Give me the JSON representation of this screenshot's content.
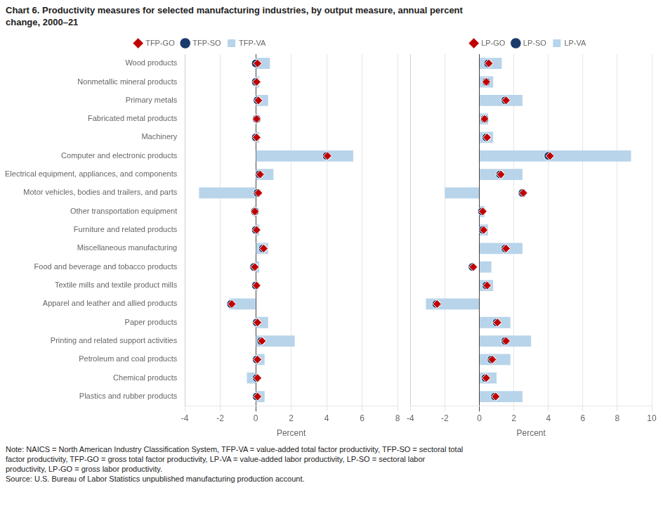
{
  "title": "Chart 6. Productivity measures for selected manufacturing industries, by output measure, annual percent\nchange, 2000–21",
  "note": "Note: NAICS = North American Industry Classification System, TFP-VA = value-added total factor productivity, TFP-SO = sectoral total\nfactor productivity, TFP-GO = gross total factor productivity, LP-VA = value-added labor productivity, LP-SO = sectoral labor\nproductivity, LP-GO = gross labor productivity.\nSource: U.S. Bureau of Labor Statistics unpublished manufacturing production account.",
  "chart_data": [
    {
      "type": "bar",
      "orientation": "horizontal",
      "x_label": "Percent",
      "grid": true,
      "legend": "top",
      "categories": [
        "Wood products",
        "Nonmetallic mineral products",
        "Primary metals",
        "Fabricated metal products",
        "Machinery",
        "Computer and electronic products",
        "Electrical equipment, appliances, and components",
        "Motor vehicles, bodies and trailers, and parts",
        "Other transportation equipment",
        "Furniture and related products",
        "Miscellaneous manufacturing",
        "Food and beverage and tobacco products",
        "Textile mills and textile product mills",
        "Apparel and leather and allied products",
        "Paper products",
        "Printing and related support activities",
        "Petroleum and coal products",
        "Chemical products",
        "Plastics and rubber products"
      ],
      "xlim": [
        -4,
        8
      ],
      "xticks": [
        -4,
        -2,
        0,
        2,
        4,
        6,
        8
      ],
      "series": [
        {
          "name": "TFP-VA",
          "type": "bar",
          "color": "#b8d4ea",
          "values": [
            0.8,
            0.2,
            0.7,
            0.1,
            0.2,
            5.5,
            1.0,
            -3.2,
            -0.1,
            0.2,
            0.7,
            0.2,
            0.1,
            -1.5,
            0.7,
            2.2,
            0.5,
            -0.5,
            0.5
          ]
        },
        {
          "name": "TFP-SO",
          "type": "scatter",
          "marker": "circle",
          "color": "#1a3a6b",
          "values": [
            0.0,
            0.0,
            0.1,
            0.05,
            0.0,
            4.0,
            0.2,
            0.1,
            -0.05,
            0.0,
            0.4,
            -0.1,
            0.0,
            -1.4,
            0.05,
            0.3,
            0.05,
            0.05,
            0.05
          ]
        },
        {
          "name": "TFP-GO",
          "type": "scatter",
          "marker": "diamond",
          "color": "#c00000",
          "values": [
            0.1,
            0.05,
            0.15,
            0.05,
            0.05,
            4.05,
            0.25,
            0.15,
            -0.05,
            0.05,
            0.45,
            -0.05,
            0.05,
            -1.35,
            0.1,
            0.35,
            0.1,
            0.1,
            0.1
          ]
        }
      ]
    },
    {
      "type": "bar",
      "orientation": "horizontal",
      "x_label": "Percent",
      "grid": true,
      "legend": "top",
      "tick_labels": "x",
      "categories": [
        "Wood products",
        "Nonmetallic mineral products",
        "Primary metals",
        "Fabricated metal products",
        "Machinery",
        "Computer and electronic products",
        "Electrical equipment, appliances, and components",
        "Motor vehicles, bodies and trailers, and parts",
        "Other transportation equipment",
        "Furniture and related products",
        "Miscellaneous manufacturing",
        "Food and beverage and tobacco products",
        "Textile mills and textile product mills",
        "Apparel and leather and allied products",
        "Paper products",
        "Printing and related support activities",
        "Petroleum and coal products",
        "Chemical products",
        "Plastics and rubber products"
      ],
      "xlim": [
        -4,
        10
      ],
      "xticks": [
        -4,
        -2,
        0,
        2,
        4,
        6,
        8,
        10
      ],
      "series": [
        {
          "name": "LP-VA",
          "type": "bar",
          "color": "#b8d4ea",
          "values": [
            1.3,
            0.8,
            2.5,
            0.5,
            0.8,
            8.8,
            2.5,
            -2.0,
            0.3,
            0.5,
            2.5,
            0.7,
            0.8,
            -3.1,
            1.8,
            3.0,
            1.8,
            1.0,
            2.5
          ]
        },
        {
          "name": "LP-SO",
          "type": "scatter",
          "marker": "circle",
          "color": "#1a3a6b",
          "values": [
            0.5,
            0.4,
            1.5,
            0.3,
            0.4,
            4.0,
            1.2,
            2.5,
            0.15,
            0.2,
            1.5,
            -0.4,
            0.4,
            -2.5,
            1.0,
            1.5,
            0.7,
            0.35,
            0.9
          ]
        },
        {
          "name": "LP-GO",
          "type": "scatter",
          "marker": "diamond",
          "color": "#c00000",
          "values": [
            0.55,
            0.4,
            1.55,
            0.3,
            0.45,
            4.1,
            1.25,
            2.55,
            0.2,
            0.25,
            1.55,
            -0.35,
            0.45,
            -2.45,
            1.05,
            1.55,
            0.75,
            0.4,
            0.95
          ]
        }
      ]
    }
  ]
}
